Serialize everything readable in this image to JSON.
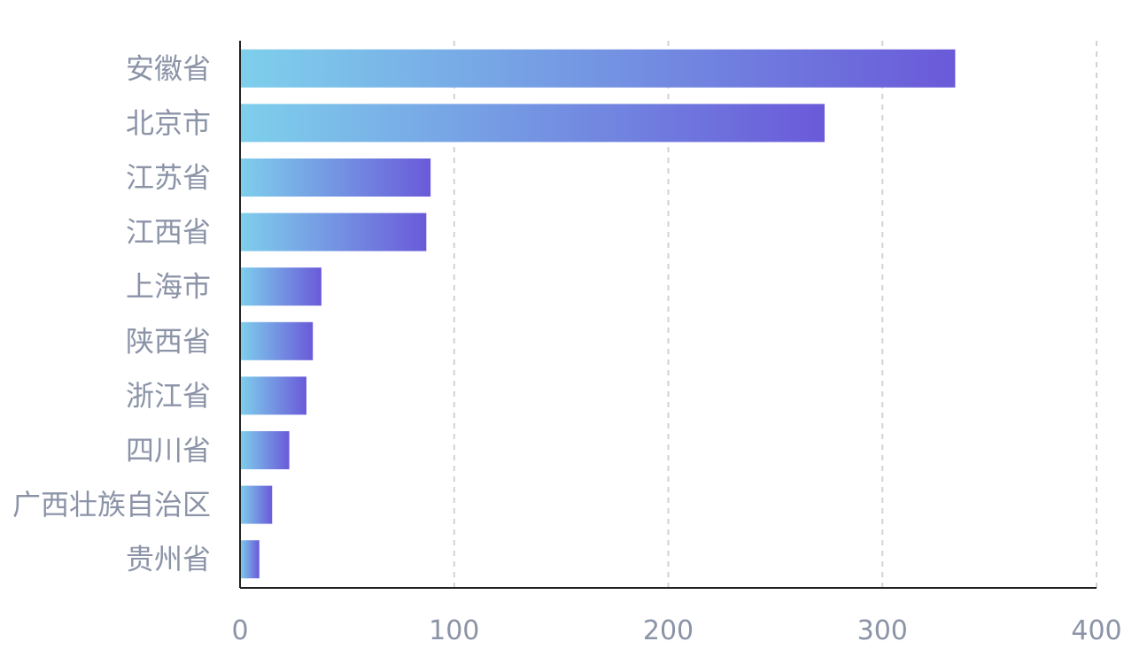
{
  "chart_data": {
    "type": "bar",
    "orientation": "horizontal",
    "categories": [
      "安徽省",
      "北京市",
      "江苏省",
      "江西省",
      "上海市",
      "陕西省",
      "浙江省",
      "四川省",
      "广西壮族自治区",
      "贵州省"
    ],
    "values": [
      334,
      273,
      89,
      87,
      38,
      34,
      31,
      23,
      15,
      9
    ],
    "xlim": [
      0,
      400
    ],
    "xticks": [
      "0",
      "100",
      "200",
      "300",
      "400"
    ],
    "title": "",
    "xlabel": "",
    "ylabel": "",
    "grid": "vertical dashed",
    "legend": "none",
    "colors": {
      "gradient_start": "#7ecfec",
      "gradient_end": "#6a5ad9",
      "axis": "#222222",
      "grid": "#d2d2d2",
      "label": "#8b93a7"
    }
  }
}
